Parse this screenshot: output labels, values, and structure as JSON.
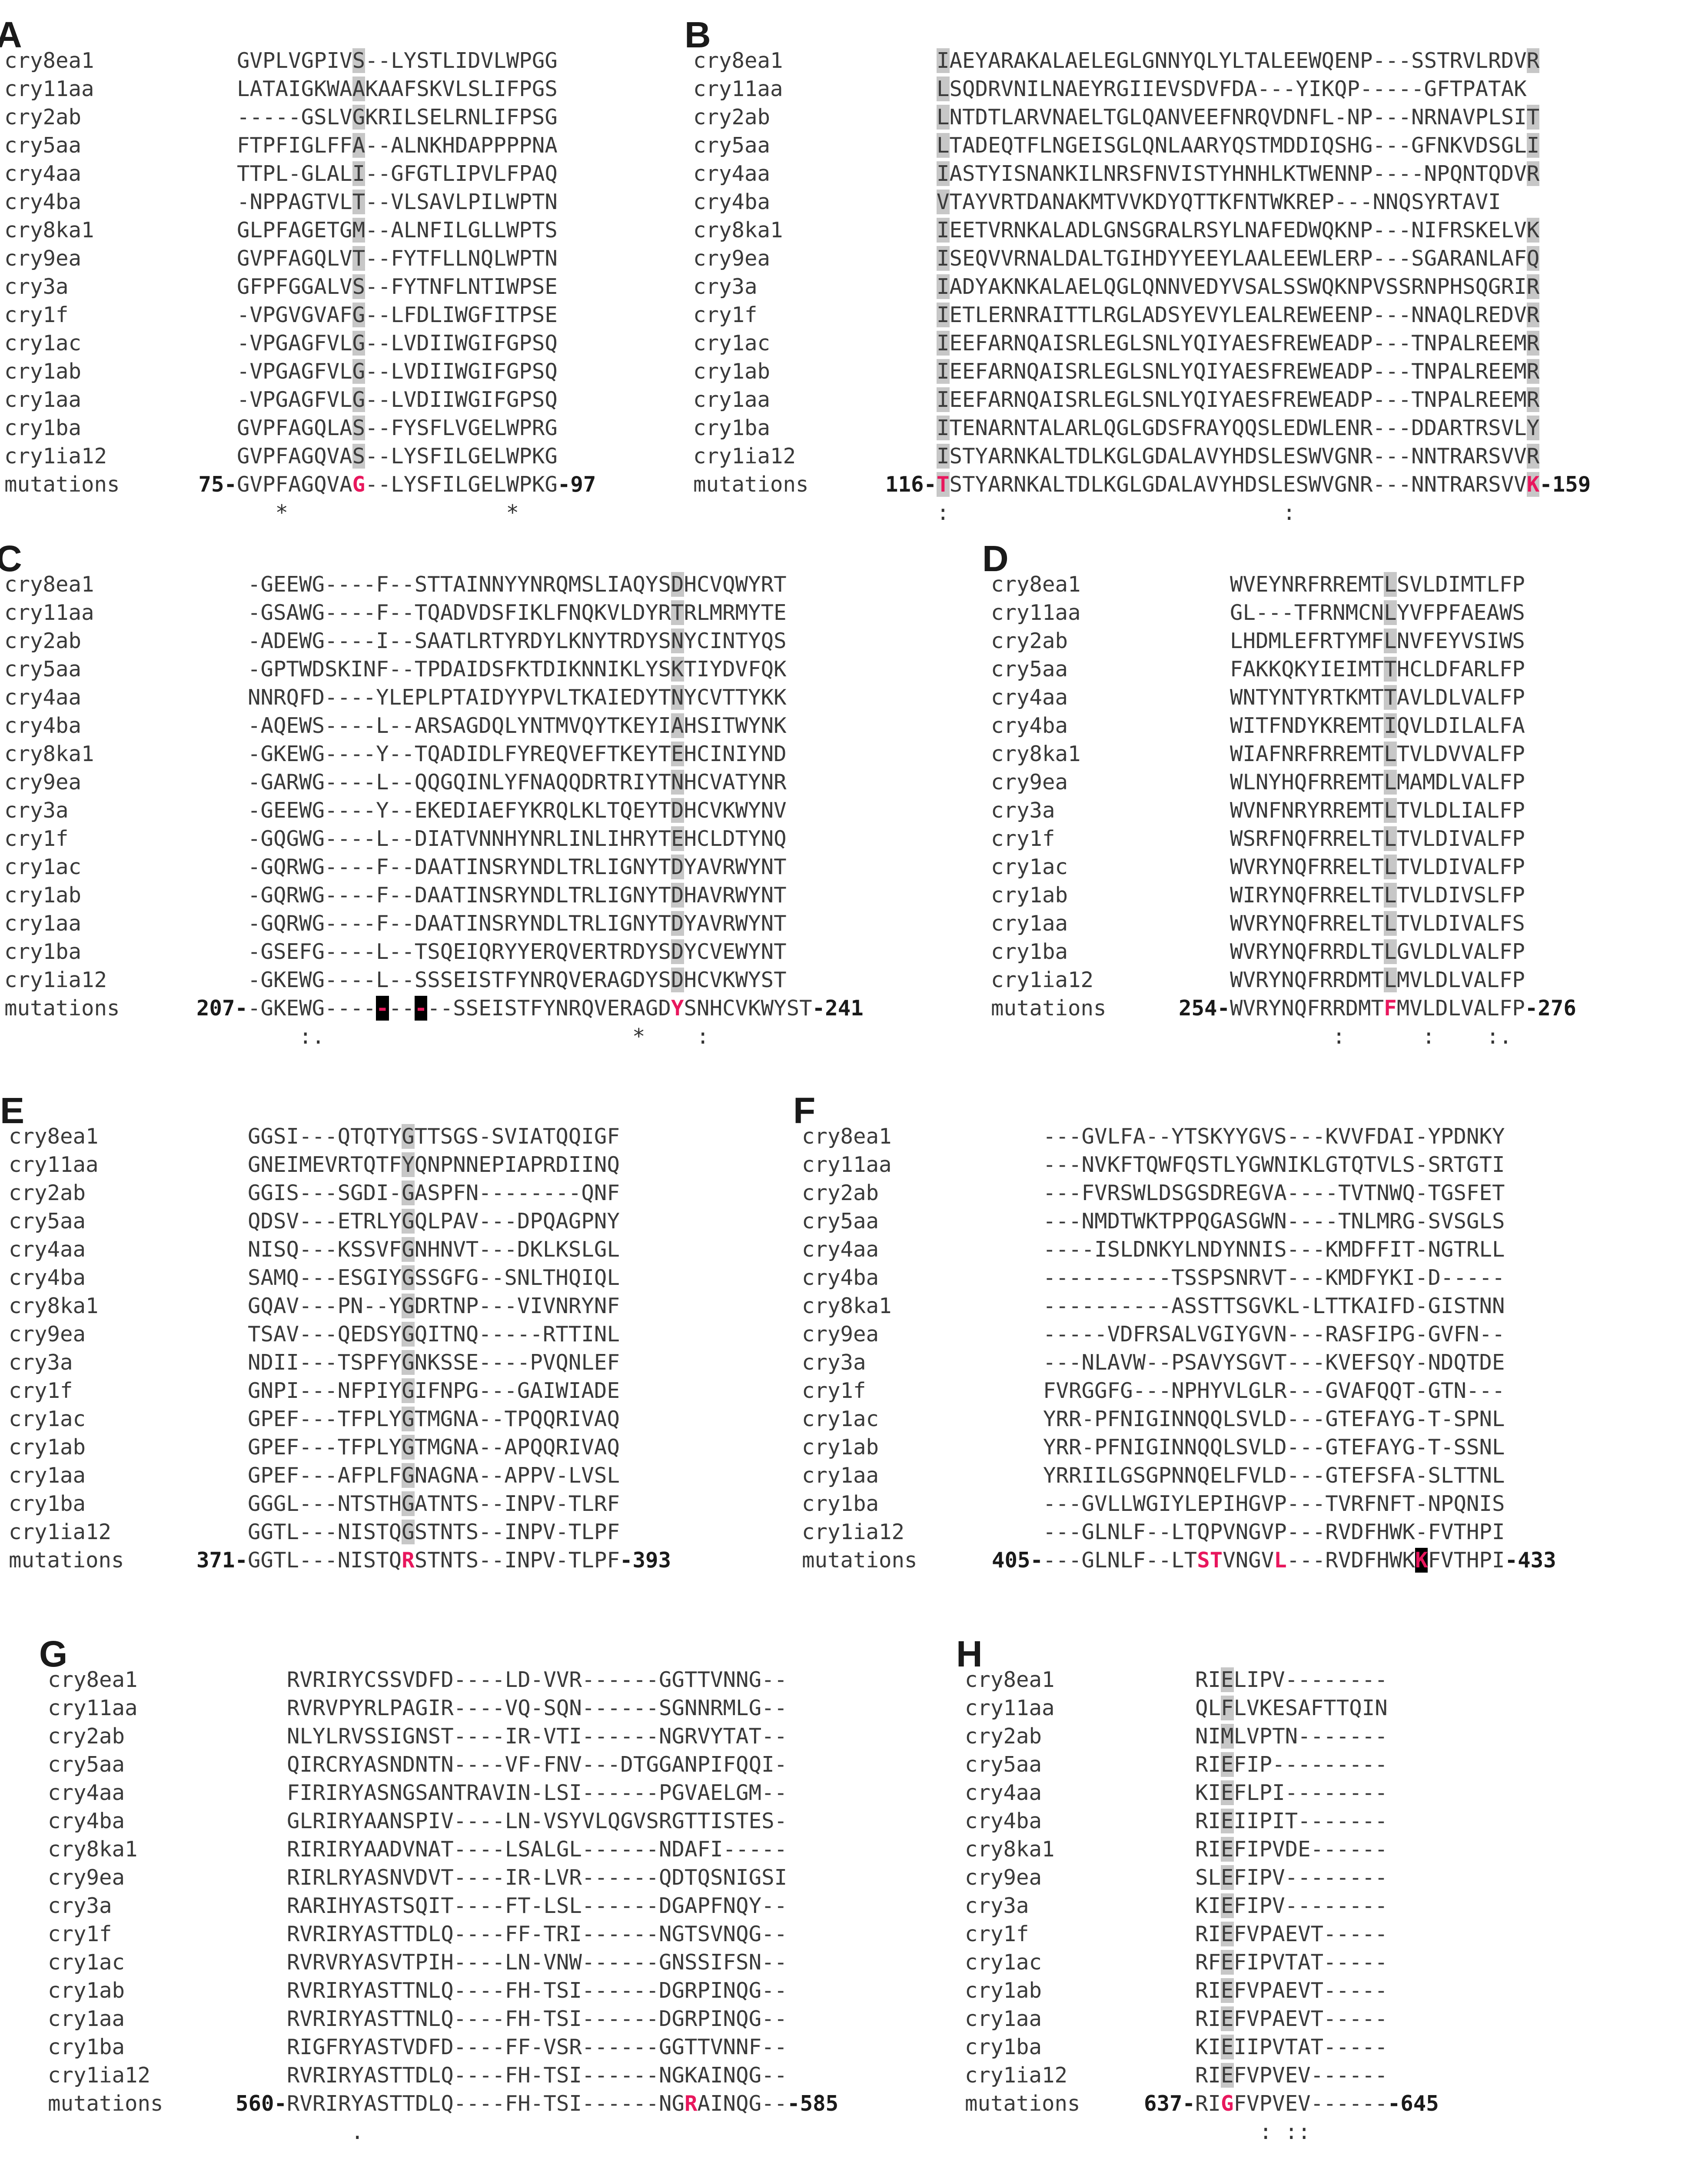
{
  "panels": [
    {
      "label": "A",
      "rows": [
        {
          "name": "cry8ea1",
          "seq": "GVPLVGPIVS--LYSTLIDVLWPGG"
        },
        {
          "name": "cry11aa",
          "seq": "LATAIGKWAAKAAFSKVLSLIFPGS"
        },
        {
          "name": "cry2ab",
          "seq": "-----GSLVGKRILSELRNLIFPSG"
        },
        {
          "name": "cry5aa",
          "seq": "FTPFIGLFFA--ALNKHDAPPPPNA"
        },
        {
          "name": "cry4aa",
          "seq": "TTPL-GLALI--GFGTLIPVLFPAQ"
        },
        {
          "name": "cry4ba",
          "seq": "-NPPAGTVLT--VLSAVLPILWPTN"
        },
        {
          "name": "cry8ka1",
          "seq": "GLPFAGETGM--ALNFILGLLWPTS"
        },
        {
          "name": "cry9ea",
          "seq": "GVPFAGQLVT--FYTFLLNQLWPTN"
        },
        {
          "name": "cry3a",
          "seq": "GFPFGGALVS--FYTNFLNTIWPSE"
        },
        {
          "name": "cry1f",
          "seq": "-VPGVGVAFG--LFDLIWGFITPSE"
        },
        {
          "name": "cry1ac",
          "seq": "-VPGAGFVLG--LVDIIWGIFGPSQ"
        },
        {
          "name": "cry1ab",
          "seq": "-VPGAGFVLG--LVDIIWGIFGPSQ"
        },
        {
          "name": "cry1aa",
          "seq": "-VPGAGFVLG--LVDIIWGIFGPSQ"
        },
        {
          "name": "cry1ba",
          "seq": "GVPFAGQLAS--FYSFLVGELWPRG"
        },
        {
          "name": "cry1ia12",
          "seq": "GVPFAGQVAS--LYSFILGELWPKG"
        },
        {
          "name": "mutations",
          "seq": "GVPFAGQVAG--LYSFILGELWPKG",
          "start": "75-",
          "end": "-97"
        }
      ],
      "consensus": "   *                 *"
    },
    {
      "label": "B",
      "rows": [
        {
          "name": "cry8ea1",
          "seq": "IAEYARAKALAELEGLGNNYQLYLTALEEWQENP---SSTRVLRDVR"
        },
        {
          "name": "cry11aa",
          "seq": "LSQDRVNILNAEYRGIIEVSDVFDA---YIKQP-----GFTPATAK"
        },
        {
          "name": "cry2ab",
          "seq": "LNTDTLARVNAELTGLQANVEEFNRQVDNFL-NP---NRNAVPLSIT"
        },
        {
          "name": "cry5aa",
          "seq": "LTADEQTFLNGEISGLQNLAARYQSTMDDIQSHG---GFNKVDSGLI"
        },
        {
          "name": "cry4aa",
          "seq": "IASTYISNANKILNRSFNVISTYHNHLKTWENNP----NPQNTQDVR"
        },
        {
          "name": "cry4ba",
          "seq": "VTAYVRTDANAKMTVVKDYQTTKFNTWKREP---NNQSYRTAVI"
        },
        {
          "name": "cry8ka1",
          "seq": "IEETVRNKALADLGNSGRALRSYLNAFEDWQKNP---NIFRSKELVK"
        },
        {
          "name": "cry9ea",
          "seq": "ISEQVVRNALDALTGIHDYYEEYLAALEEWLERP---SGARANLAFQ"
        },
        {
          "name": "cry3a",
          "seq": "IADYAKNKALAELQGLQNNVEDYVSALSSWQKNPVSSRNPHSQGRIR"
        },
        {
          "name": "cry1f",
          "seq": "IETLERNRAITTLRGLADSYEVYLEALREWEENP---NNAQLREDVR"
        },
        {
          "name": "cry1ac",
          "seq": "IEEFARNQAISRLEGLSNLYQIYAESFREWEADP---TNPALREEMR"
        },
        {
          "name": "cry1ab",
          "seq": "IEEFARNQAISRLEGLSNLYQIYAESFREWEADP---TNPALREEMR"
        },
        {
          "name": "cry1aa",
          "seq": "IEEFARNQAISRLEGLSNLYQIYAESFREWEADP---TNPALREEMR"
        },
        {
          "name": "cry1ba",
          "seq": "ITENARNTALARLQGLGDSFRAYQQSLEDWLENR---DDARTRSVLY"
        },
        {
          "name": "cry1ia12",
          "seq": "ISTYARNKALTDLKGLGDALAVYHDSLESWVGNR---NNTRARSVVR"
        },
        {
          "name": "mutations",
          "seq": "TSTYARNKALTDLKGLGDALAVYHDSLESWVGNR---NNTRARSVVK",
          "start": "116-",
          "end": "-159"
        }
      ],
      "consensus": ":                          :"
    },
    {
      "label": "C",
      "rows": [
        {
          "name": "cry8ea1",
          "seq": "-GEEWG----F--STTAINNYYNRQMSLIAQYSDHCVQWYRT"
        },
        {
          "name": "cry11aa",
          "seq": "-GSAWG----F--TQADVDSFIKLFNQKVLDYRTRLMRMYTE"
        },
        {
          "name": "cry2ab",
          "seq": "-ADEWG----I--SAATLRTYRDYLKNYTRDYSNYCINTYQS"
        },
        {
          "name": "cry5aa",
          "seq": "-GPTWDSKINF--TPDAIDSFKTDIKNNIKLYSKTIYDVFQK"
        },
        {
          "name": "cry4aa",
          "seq": "NNRQFD----YLEPLPTAIDYYPVLTKAIEDYTNYCVTTYKK"
        },
        {
          "name": "cry4ba",
          "seq": "-AQEWS----L--ARSAGDQLYNTMVQYTKEYIAHSITWYNK"
        },
        {
          "name": "cry8ka1",
          "seq": "-GKEWG----Y--TQADIDLFYREQVEFTKEYTEHCINIYND"
        },
        {
          "name": "cry9ea",
          "seq": "-GARWG----L--QQGQINLYFNAQQDRTRIYTNHCVATYNR"
        },
        {
          "name": "cry3a",
          "seq": "-GEEWG----Y--EKEDIAEFYKRQLKLTQEYTDHCVKWYNV"
        },
        {
          "name": "cry1f",
          "seq": "-GQGWG----L--DIATVNNHYNRLINLIHRYTEHCLDTYNQ"
        },
        {
          "name": "cry1ac",
          "seq": "-GQRWG----F--DAATINSRYNDLTRLIGNYTDYAVRWYNT"
        },
        {
          "name": "cry1ab",
          "seq": "-GQRWG----F--DAATINSRYNDLTRLIGNYTDHAVRWYNT"
        },
        {
          "name": "cry1aa",
          "seq": "-GQRWG----F--DAATINSRYNDLTRLIGNYTDYAVRWYNT"
        },
        {
          "name": "cry1ba",
          "seq": "-GSEFG----L--TSQEIQRYYERQVERTRDYSDYCVEWYNT"
        },
        {
          "name": "cry1ia12",
          "seq": "-GKEWG----L--SSSEISTFYNRQVERAGDYSDHCVKWYST"
        },
        {
          "name": "mutations",
          "seq": "-GKEWG----------SSEISTFYNRQVERAGDYSNHCVKWYST",
          "start": "207-",
          "end": "-241"
        }
      ],
      "consensus": "    :.                        *    :"
    },
    {
      "label": "D",
      "rows": [
        {
          "name": "cry8ea1",
          "seq": "WVEYNRFRREMTLSVLDIMTLFP"
        },
        {
          "name": "cry11aa",
          "seq": "GL---TFRNMCNLYVFPFAEAWS"
        },
        {
          "name": "cry2ab",
          "seq": "LHDMLEFRTYMFLNVFEYVSIWS"
        },
        {
          "name": "cry5aa",
          "seq": "FAKKQKYIEIMTTHCLDFARLFP"
        },
        {
          "name": "cry4aa",
          "seq": "WNTYNTYRTKMTTAVLDLVALFP"
        },
        {
          "name": "cry4ba",
          "seq": "WITFNDYKREMTIQVLDILALFA"
        },
        {
          "name": "cry8ka1",
          "seq": "WIAFNRFRREMTLTVLDVVALFP"
        },
        {
          "name": "cry9ea",
          "seq": "WLNYHQFRREMTLMAMDLVALFP"
        },
        {
          "name": "cry3a",
          "seq": "WVNFNRYRREMTLTVLDLIALFP"
        },
        {
          "name": "cry1f",
          "seq": "WSRFNQFRRELTLTVLDIVALFP"
        },
        {
          "name": "cry1ac",
          "seq": "WVRYNQFRRELTLTVLDIVALFP"
        },
        {
          "name": "cry1ab",
          "seq": "WIRYNQFRRELTLTVLDIVSLFP"
        },
        {
          "name": "cry1aa",
          "seq": "WVRYNQFRRELTLTVLDIVALFS"
        },
        {
          "name": "cry1ba",
          "seq": "WVRYNQFRRDLTLGVLDLVALFP"
        },
        {
          "name": "cry1ia12",
          "seq": "WVRYNQFRRDMTLMVLDLVALFP"
        },
        {
          "name": "mutations",
          "seq": "WVRYNQFRRDMTFMVLDLVALFP",
          "start": "254-",
          "end": "-276"
        }
      ],
      "consensus": "        :      :    :."
    },
    {
      "label": "E",
      "rows": [
        {
          "name": "cry8ea1",
          "seq": "GGSI---QTQTYGTTSGS-SVIATQQIGF"
        },
        {
          "name": "cry11aa",
          "seq": "GNEIMEVRTQTFYQNPNNEPIAPRDIINQ"
        },
        {
          "name": "cry2ab",
          "seq": "GGIS---SGDI-GASPFN--------QNF"
        },
        {
          "name": "cry5aa",
          "seq": "QDSV---ETRLYGQLPAV---DPQAGPNY"
        },
        {
          "name": "cry4aa",
          "seq": "NISQ---KSSVFGNHNVT---DKLKSLGL"
        },
        {
          "name": "cry4ba",
          "seq": "SAMQ---ESGIYGSSGFG--SNLTHQIQL"
        },
        {
          "name": "cry8ka1",
          "seq": "GQAV---PN--YGDRTNP---VIVNRYNF"
        },
        {
          "name": "cry9ea",
          "seq": "TSAV---QEDSYGQITNQ-----RTTINL"
        },
        {
          "name": "cry3a",
          "seq": "NDII---TSPFYGNKSSE----PVQNLEF"
        },
        {
          "name": "cry1f",
          "seq": "GNPI---NFPIYGIFNPG---GAIWIADE"
        },
        {
          "name": "cry1ac",
          "seq": "GPEF---TFPLYGTMGNA--TPQQRIVAQ"
        },
        {
          "name": "cry1ab",
          "seq": "GPEF---TFPLYGTMGNA--APQQRIVAQ"
        },
        {
          "name": "cry1aa",
          "seq": "GPEF---AFPLFGNAGNA--APPV-LVSL"
        },
        {
          "name": "cry1ba",
          "seq": "GGGL---NTSTHGATNTS--INPV-TLRF"
        },
        {
          "name": "cry1ia12",
          "seq": "GGTL---NISTQGSTNTS--INPV-TLPF"
        },
        {
          "name": "mutations",
          "seq": "GGTL---NISTQRSTNTS--INPV-TLPF",
          "start": "371-",
          "end": "-393"
        }
      ],
      "consensus": ""
    },
    {
      "label": "F",
      "rows": [
        {
          "name": "cry8ea1",
          "seq": "---GVLFA--YTSKYYGVS---KVVFDAI-YPDNKY"
        },
        {
          "name": "cry11aa",
          "seq": "---NVKFTQWFQSTLYGWNIKLGTQTVLS-SRTGTI"
        },
        {
          "name": "cry2ab",
          "seq": "---FVRSWLDSGSDREGVA----TVTNWQ-TGSFET"
        },
        {
          "name": "cry5aa",
          "seq": "---NMDTWKTPPQGASGWN----TNLMRG-SVSGLS"
        },
        {
          "name": "cry4aa",
          "seq": "----ISLDNKYLNDYNNIS---KMDFFIT-NGTRLL"
        },
        {
          "name": "cry4ba",
          "seq": "----------TSSPSNRVT---KMDFYKI-D-----"
        },
        {
          "name": "cry8ka1",
          "seq": "----------ASSTTSGVKL-LTTKAIFD-GISTNN"
        },
        {
          "name": "cry9ea",
          "seq": "-----VDFRSALVGIYGVN---RASFIPG-GVFN--"
        },
        {
          "name": "cry3a",
          "seq": "---NLAVW--PSAVYSGVT---KVEFSQY-NDQTDE"
        },
        {
          "name": "cry1f",
          "seq": "FVRGGFG---NPHYVLGLR---GVAFQQT-GTN---"
        },
        {
          "name": "cry1ac",
          "seq": "YRR-PFNIGINNQQLSVLD---GTEFAYG-T-SPNL"
        },
        {
          "name": "cry1ab",
          "seq": "YRR-PFNIGINNQQLSVLD---GTEFAYG-T-SSNL"
        },
        {
          "name": "cry1aa",
          "seq": "YRRIILGSGPNNQELFVLD---GTEFSFA-SLTTNL"
        },
        {
          "name": "cry1ba",
          "seq": "---GVLLWGIYLEPIHGVP---TVRFNFT-NPQNIS"
        },
        {
          "name": "cry1ia12",
          "seq": "---GLNLF--LTQPVNGVP---RVDFHWK-FVTHPI"
        },
        {
          "name": "mutations",
          "seq": "---GLNLF--LTSTVNGVL---RVDFHWKKFVTHPI",
          "start": "405-",
          "end": "-433"
        }
      ],
      "consensus": ""
    },
    {
      "label": "G",
      "rows": [
        {
          "name": "cry8ea1",
          "seq": "RVRIRYCSSVDFD----LD-VVR------GGTTVNNG--"
        },
        {
          "name": "cry11aa",
          "seq": "RVRVPYRLPAGIR----VQ-SQN------SGNNRMLG--"
        },
        {
          "name": "cry2ab",
          "seq": "NLYLRVSSIGNST----IR-VTI------NGRVYTAT--"
        },
        {
          "name": "cry5aa",
          "seq": "QIRCRYASNDNTN----VF-FNV---DTGGANPIFQQI-"
        },
        {
          "name": "cry4aa",
          "seq": "FIRIRYASNGSANTRAVIN-LSI------PGVAELGM--"
        },
        {
          "name": "cry4ba",
          "seq": "GLRIRYAANSPIV----LN-VSYVLQGVSRGTTISTES-"
        },
        {
          "name": "cry8ka1",
          "seq": "RIRIRYAADVNAT----LSALGL------NDAFI-----"
        },
        {
          "name": "cry9ea",
          "seq": "RIRLRYASNVDVT----IR-LVR------QDTQSNIGSI"
        },
        {
          "name": "cry3a",
          "seq": "RARIHYASTSQIT----FT-LSL------DGAPFNQY--"
        },
        {
          "name": "cry1f",
          "seq": "RVRIRYASTTDLQ----FF-TRI------NGTSVNQG--"
        },
        {
          "name": "cry1ac",
          "seq": "RVRVRYASVTPIH----LN-VNW------GNSSIFSN--"
        },
        {
          "name": "cry1ab",
          "seq": "RVRIRYASTTNLQ----FH-TSI------DGRPINQG--"
        },
        {
          "name": "cry1aa",
          "seq": "RVRIRYASTTNLQ----FH-TSI------DGRPINQG--"
        },
        {
          "name": "cry1ba",
          "seq": "RIGFRYASTVDFD----FF-VSR------GGTTVNNF--"
        },
        {
          "name": "cry1ia12",
          "seq": "RVRIRYASTTDLQ----FH-TSI------NGKAINQG--"
        },
        {
          "name": "mutations",
          "seq": "RVRIRYASTTDLQ----FH-TSI------NGRAINQG--",
          "start": "560-",
          "end": "-585"
        }
      ],
      "consensus": "     ."
    },
    {
      "label": "H",
      "rows": [
        {
          "name": "cry8ea1",
          "seq": "RIELIPV--------"
        },
        {
          "name": "cry11aa",
          "seq": "QLFLVKESAFTTQIN"
        },
        {
          "name": "cry2ab",
          "seq": "NIMLVPTN-------"
        },
        {
          "name": "cry5aa",
          "seq": "RIEFIP---------"
        },
        {
          "name": "cry4aa",
          "seq": "KIEFLPI--------"
        },
        {
          "name": "cry4ba",
          "seq": "RIEIIPIT-------"
        },
        {
          "name": "cry8ka1",
          "seq": "RIEFIPVDE------"
        },
        {
          "name": "cry9ea",
          "seq": "SLEFIPV--------"
        },
        {
          "name": "cry3a",
          "seq": "KIEFIPV--------"
        },
        {
          "name": "cry1f",
          "seq": "RIEFVPAEVT-----"
        },
        {
          "name": "cry1ac",
          "seq": "RFEFIPVTAT-----"
        },
        {
          "name": "cry1ab",
          "seq": "RIEFVPAEVT-----"
        },
        {
          "name": "cry1aa",
          "seq": "RIEFVPAEVT-----"
        },
        {
          "name": "cry1ba",
          "seq": "KIEIIPVTAT-----"
        },
        {
          "name": "cry1ia12",
          "seq": "RIEFVPVEV------"
        },
        {
          "name": "mutations",
          "seq": "RIGFVPVEV------",
          "start": "637-",
          "end": "-645"
        }
      ],
      "consensus": "     : ::"
    }
  ]
}
